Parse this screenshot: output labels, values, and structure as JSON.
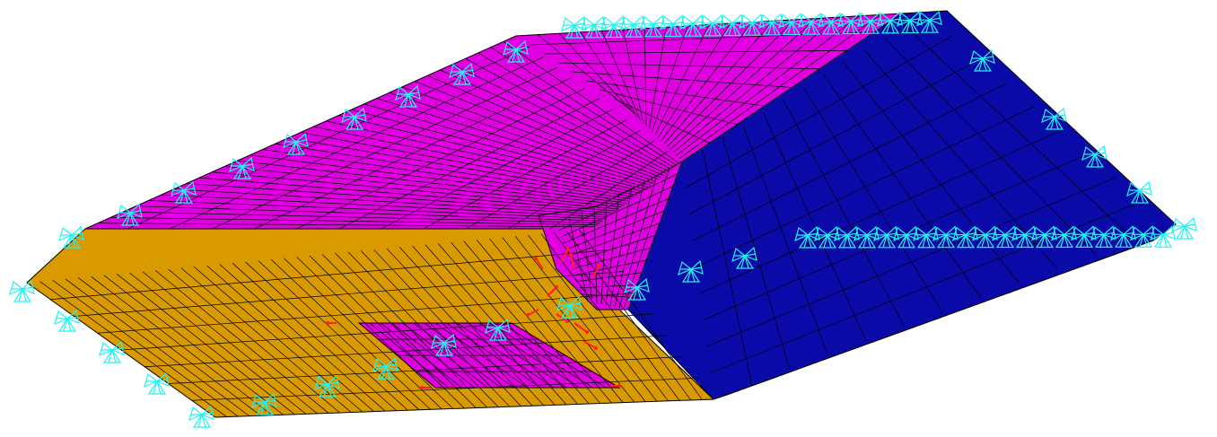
{
  "viewport": {
    "name": "fe-mesh-viewport"
  },
  "colors": {
    "background": "#ffffff",
    "top_face": "#e100e1",
    "side_face": "#d99a00",
    "end_face": "#0a0aa8",
    "mesh_lines": "#000000",
    "constraint_symbols": "#22f2f2",
    "load_arrows": "#ff2020"
  },
  "icons": {
    "constraint": "fixed-constraint-icon",
    "load": "load-arrow-icon"
  },
  "view_state": {
    "render_mode": "shaded-with-mesh-edges",
    "projection": "isometric"
  }
}
